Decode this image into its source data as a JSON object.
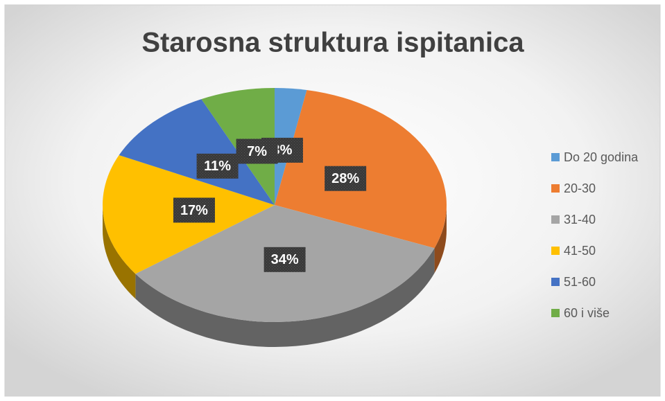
{
  "chart_data": {
    "type": "pie",
    "title": "Starosna struktura ispitanica",
    "categories": [
      "Do 20 godina",
      "20-30",
      "31-40",
      "41-50",
      "51-60",
      "60 i više"
    ],
    "values": [
      3,
      28,
      34,
      17,
      11,
      7
    ],
    "value_labels": [
      "3%",
      "28%",
      "34%",
      "17%",
      "11%",
      "7%"
    ],
    "colors": [
      "#5b9bd5",
      "#ed7d31",
      "#a5a5a5",
      "#ffc000",
      "#4472c4",
      "#70ad47"
    ],
    "legend": "right"
  }
}
